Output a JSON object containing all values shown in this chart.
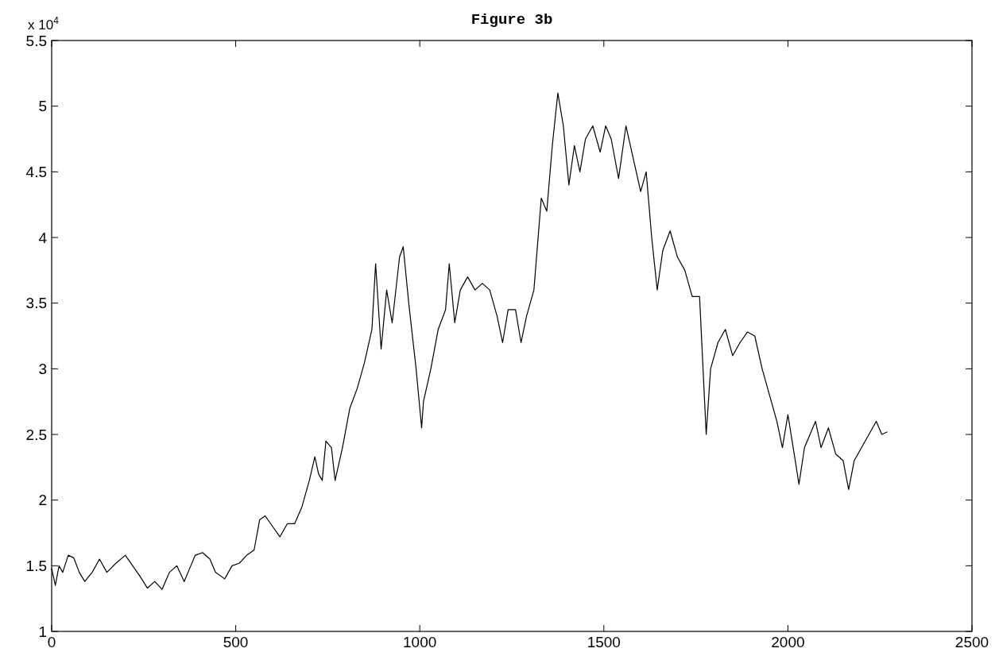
{
  "chart_data": {
    "type": "line",
    "title": "Figure 3b",
    "annotations": [
      "x 10$^{4}$"
    ],
    "x": [
      0,
      10,
      20,
      30,
      45,
      60,
      75,
      90,
      110,
      130,
      150,
      175,
      200,
      220,
      240,
      260,
      280,
      300,
      320,
      340,
      360,
      375,
      390,
      410,
      430,
      445,
      470,
      490,
      510,
      530,
      550,
      565,
      580,
      600,
      620,
      640,
      660,
      680,
      700,
      715,
      725,
      735,
      745,
      760,
      770,
      790,
      810,
      830,
      850,
      870,
      880,
      895,
      910,
      925,
      945,
      955,
      970,
      990,
      1005,
      1010,
      1030,
      1050,
      1070,
      1080,
      1095,
      1110,
      1130,
      1150,
      1170,
      1190,
      1210,
      1225,
      1240,
      1260,
      1275,
      1290,
      1310,
      1330,
      1345,
      1360,
      1375,
      1390,
      1405,
      1420,
      1435,
      1450,
      1470,
      1490,
      1505,
      1520,
      1540,
      1560,
      1580,
      1600,
      1615,
      1630,
      1645,
      1660,
      1680,
      1700,
      1720,
      1740,
      1760,
      1778,
      1790,
      1810,
      1830,
      1850,
      1870,
      1890,
      1910,
      1930,
      1950,
      1970,
      1985,
      2000,
      2020,
      2030,
      2045,
      2060,
      2075,
      2090,
      2110,
      2130,
      2150,
      2165,
      2180,
      2200,
      2220,
      2240,
      2255,
      2270
    ],
    "series": [
      {
        "color": "#000000",
        "values": [
          1.48,
          1.35,
          1.5,
          1.45,
          1.58,
          1.56,
          1.45,
          1.38,
          1.45,
          1.55,
          1.45,
          1.52,
          1.58,
          1.5,
          1.42,
          1.33,
          1.38,
          1.32,
          1.45,
          1.5,
          1.38,
          1.48,
          1.58,
          1.6,
          1.55,
          1.45,
          1.4,
          1.5,
          1.52,
          1.58,
          1.62,
          1.85,
          1.88,
          1.8,
          1.72,
          1.82,
          1.82,
          1.95,
          2.15,
          2.33,
          2.2,
          2.15,
          2.45,
          2.4,
          2.15,
          2.4,
          2.7,
          2.85,
          3.05,
          3.3,
          3.8,
          3.15,
          3.6,
          3.35,
          3.85,
          3.93,
          3.5,
          3.0,
          2.55,
          2.75,
          3.0,
          3.3,
          3.45,
          3.8,
          3.35,
          3.6,
          3.7,
          3.6,
          3.65,
          3.6,
          3.4,
          3.2,
          3.45,
          3.45,
          3.2,
          3.4,
          3.6,
          4.3,
          4.2,
          4.7,
          5.1,
          4.85,
          4.4,
          4.7,
          4.5,
          4.75,
          4.85,
          4.65,
          4.85,
          4.75,
          4.45,
          4.85,
          4.6,
          4.35,
          4.5,
          4.0,
          3.6,
          3.9,
          4.05,
          3.85,
          3.75,
          3.55,
          3.55,
          2.5,
          3.0,
          3.2,
          3.3,
          3.1,
          3.2,
          3.28,
          3.25,
          3.0,
          2.8,
          2.6,
          2.4,
          2.65,
          2.3,
          2.12,
          2.4,
          2.5,
          2.6,
          2.4,
          2.55,
          2.35,
          2.3,
          2.08,
          2.3,
          2.4,
          2.5,
          2.6,
          2.5,
          2.52
        ]
      }
    ],
    "xlim": [
      0,
      2500
    ],
    "xticks": [
      0,
      500,
      1000,
      1500,
      2000,
      2500
    ],
    "ylim": [
      1,
      5.5
    ],
    "yticks": [
      1,
      1.5,
      2,
      2.5,
      3,
      3.5,
      4,
      4.5,
      5,
      5.5
    ],
    "grid": false,
    "line_style": "solid"
  }
}
